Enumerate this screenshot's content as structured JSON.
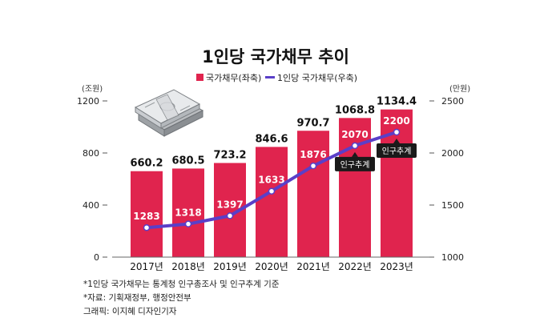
{
  "colors": {
    "bar": "#E0244E",
    "line": "#5A3FC8",
    "tag": "#1a1a1a"
  },
  "chart_data": {
    "type": "bar",
    "title": "1인당 국가채무 추이",
    "categories": [
      "2017년",
      "2018년",
      "2019년",
      "2020년",
      "2021년",
      "2022년",
      "2023년"
    ],
    "series": [
      {
        "name": "국가채무(좌축)",
        "type": "bar",
        "axis": "left",
        "values": [
          660.2,
          680.5,
          723.2,
          846.6,
          970.7,
          1068.8,
          1134.4
        ],
        "labels": [
          "660.2",
          "680.5",
          "723.2",
          "846.6",
          "970.7",
          "1068.8",
          "1134.4"
        ]
      },
      {
        "name": "1인당 국가채무(우축)",
        "type": "line",
        "axis": "right",
        "values": [
          1283,
          1318,
          1397,
          1633,
          1876,
          2070,
          2200
        ],
        "labels": [
          "1283",
          "1318",
          "1397",
          "1633",
          "1876",
          "2070",
          "2200"
        ]
      }
    ],
    "left_axis": {
      "unit": "(조원)",
      "ylim": [
        0,
        1200
      ],
      "ticks": [
        "0",
        "400",
        "800",
        "1200"
      ],
      "tick_values": [
        0,
        400,
        800,
        1200
      ]
    },
    "right_axis": {
      "unit": "(만원)",
      "ylim": [
        1000,
        2500
      ],
      "ticks": [
        "1000",
        "1500",
        "2000",
        "2500"
      ],
      "tick_values": [
        1000,
        1500,
        2000,
        2500
      ]
    },
    "annotations": [
      {
        "category_index": 5,
        "text": "인구추계"
      },
      {
        "category_index": 6,
        "text": "인구추계"
      }
    ],
    "grid": false,
    "legend_position": "top"
  },
  "footnotes": [
    "*1인당 국가채무는 통계청 인구총조사 및 인구추계 기준",
    "*자료: 기획재정부, 행정안전부",
    "그래픽: 이지혜 디자인기자"
  ]
}
